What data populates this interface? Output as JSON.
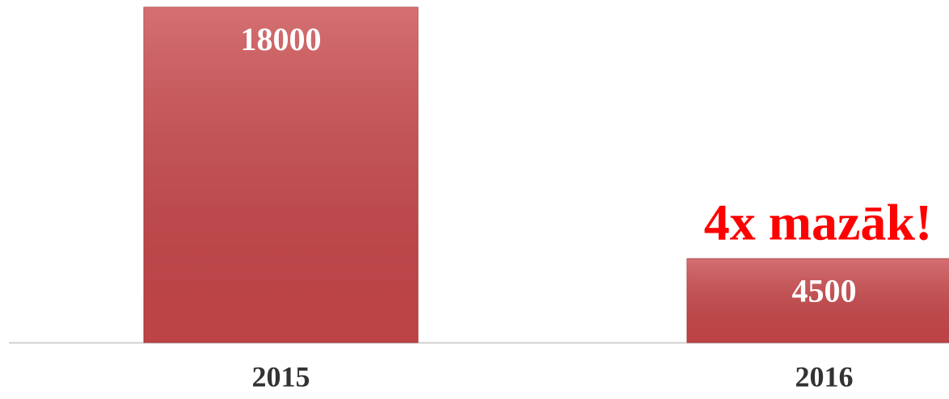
{
  "chart_data": {
    "type": "bar",
    "categories": [
      "2015",
      "2016"
    ],
    "values": [
      18000,
      4500
    ],
    "color": "#c9474a",
    "ylim": [
      0,
      18000
    ],
    "annotation": "4x mazāk!",
    "annotation_color": "#ff0000"
  }
}
